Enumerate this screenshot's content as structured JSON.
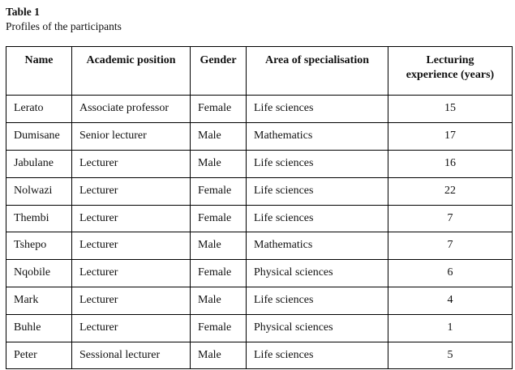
{
  "doc": {
    "table_label": "Table 1",
    "caption": "Profiles of the participants"
  },
  "table": {
    "columns": [
      "Name",
      "Academic position",
      "Gender",
      "Area of specialisation",
      "Lecturing\nexperience (years)"
    ],
    "column_keys": [
      "name",
      "academic-position",
      "gender",
      "area-of-specialisation",
      "lecturing-experience-years"
    ],
    "rows": [
      [
        "Lerato",
        "Associate professor",
        "Female",
        "Life sciences",
        "15"
      ],
      [
        "Dumisane",
        "Senior lecturer",
        "Male",
        "Mathematics",
        "17"
      ],
      [
        "Jabulane",
        "Lecturer",
        "Male",
        "Life sciences",
        "16"
      ],
      [
        "Nolwazi",
        "Lecturer",
        "Female",
        "Life sciences",
        "22"
      ],
      [
        "Thembi",
        "Lecturer",
        "Female",
        "Life sciences",
        "7"
      ],
      [
        "Tshepo",
        "Lecturer",
        "Male",
        "Mathematics",
        "7"
      ],
      [
        "Nqobile",
        "Lecturer",
        "Female",
        "Physical sciences",
        "6"
      ],
      [
        "Mark",
        "Lecturer",
        "Male",
        "Life sciences",
        "4"
      ],
      [
        "Buhle",
        "Lecturer",
        "Female",
        "Physical sciences",
        "1"
      ],
      [
        "Peter",
        "Sessional lecturer",
        "Male",
        "Life sciences",
        "5"
      ]
    ]
  }
}
